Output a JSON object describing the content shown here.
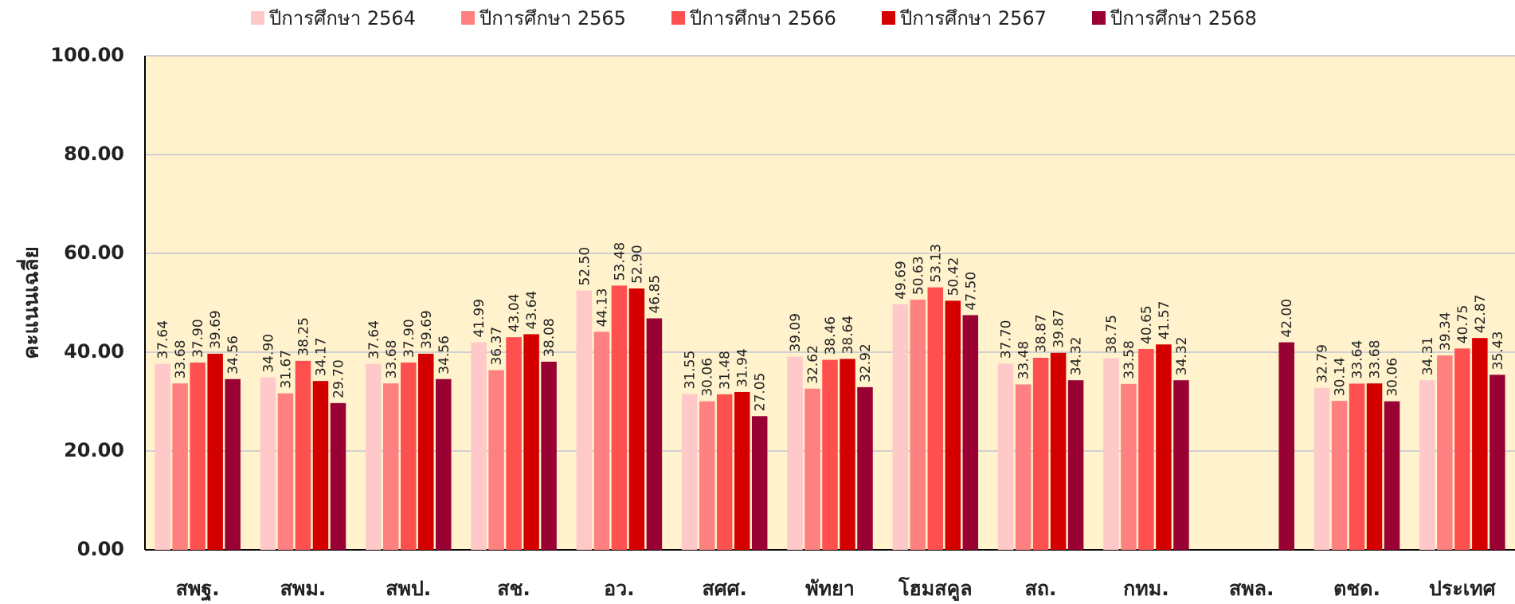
{
  "chart_data": {
    "type": "bar",
    "y_label": "คะแนนเฉลี่ย",
    "categories": [
      "สพฐ.",
      "สพม.",
      "สพป.",
      "สช.",
      "อว.",
      "สศศ.",
      "พัทยา",
      "โฮมสคูล",
      "สถ.",
      "กทม.",
      "สพล.",
      "ตชด.",
      "ประเทศ"
    ],
    "series": [
      {
        "name": "ปีการศึกษา 2564",
        "color": "#ffc9c9",
        "values": [
          37.64,
          34.9,
          37.64,
          41.99,
          52.5,
          31.55,
          39.09,
          49.69,
          37.7,
          38.75,
          null,
          32.79,
          34.31
        ],
        "value_labels": [
          "37.64",
          "34.90",
          "37.64",
          "41.99",
          "52.50",
          "31.55",
          "39.09",
          "49.69",
          "37.70",
          "38.75",
          null,
          "32.79",
          "34.31"
        ]
      },
      {
        "name": "ปีการศึกษา 2565",
        "color": "#ff8080",
        "values": [
          33.68,
          31.67,
          33.68,
          36.37,
          44.13,
          30.06,
          32.62,
          50.63,
          33.48,
          33.58,
          null,
          30.14,
          39.34
        ],
        "value_labels": [
          "33.68",
          "31.67",
          "33.68",
          "36.37",
          "44.13",
          "30.06",
          "32.62",
          "50.63",
          "33.48",
          "33.58",
          null,
          "30.14",
          "39.34"
        ]
      },
      {
        "name": "ปีการศึกษา 2566",
        "color": "#ff5050",
        "values": [
          37.9,
          38.25,
          37.9,
          43.04,
          53.48,
          31.48,
          38.46,
          53.13,
          38.87,
          40.65,
          null,
          33.64,
          40.75
        ],
        "value_labels": [
          "37.90",
          "38.25",
          "37.90",
          "43.04",
          "53.48",
          "31.48",
          "38.46",
          "53.13",
          "38.87",
          "40.65",
          null,
          "33.64",
          "40.75"
        ]
      },
      {
        "name": "ปีการศึกษา 2567",
        "color": "#d40000",
        "values": [
          39.69,
          34.17,
          39.69,
          43.64,
          52.9,
          31.94,
          38.64,
          50.42,
          39.87,
          41.57,
          null,
          33.68,
          42.87
        ],
        "value_labels": [
          "39.69",
          "34.17",
          "39.69",
          "43.64",
          "52.90",
          "31.94",
          "38.64",
          "50.42",
          "39.87",
          "41.57",
          null,
          "33.68",
          "42.87"
        ]
      },
      {
        "name": "ปีการศึกษา 2568",
        "color": "#990033",
        "values": [
          34.56,
          29.7,
          34.56,
          38.08,
          46.85,
          27.05,
          32.92,
          47.5,
          34.32,
          34.32,
          42,
          30.06,
          35.43
        ],
        "value_labels": [
          "34.56",
          "29.70",
          "34.56",
          "38.08",
          "46.85",
          "27.05",
          "32.92",
          "47.50",
          "34.32",
          "34.32",
          "42.00",
          "30.06",
          "35.43"
        ]
      }
    ],
    "ylim": [
      0,
      100
    ],
    "yticks": [
      {
        "value": 0,
        "label": "0.00"
      },
      {
        "value": 20,
        "label": "20.00"
      },
      {
        "value": 40,
        "label": "40.00"
      },
      {
        "value": 60,
        "label": "60.00"
      },
      {
        "value": 80,
        "label": "80.00"
      },
      {
        "value": 100,
        "label": "100.00"
      }
    ],
    "grid": true,
    "legend": "top",
    "plot_background": "#fff2cc"
  }
}
